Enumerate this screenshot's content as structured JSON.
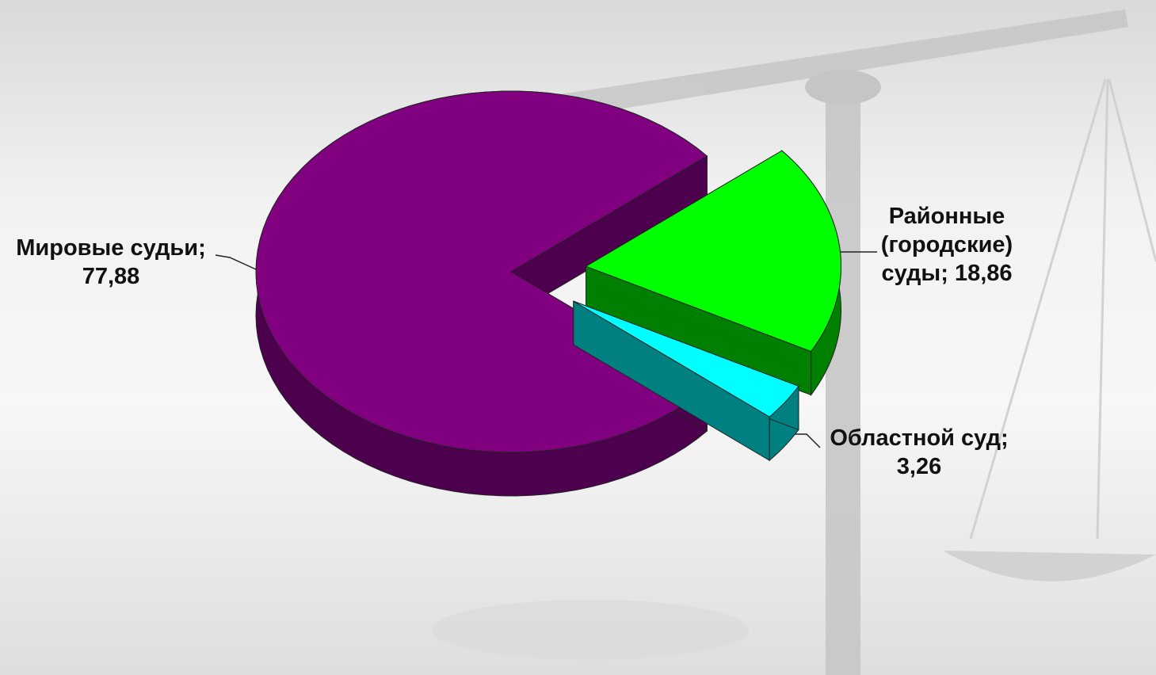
{
  "chart_data": {
    "type": "pie",
    "categories": [
      "Мировые судьи",
      "Районные (городские) суды",
      "Областной суд"
    ],
    "values": [
      77.88,
      18.86,
      3.26
    ],
    "value_labels": [
      "77,88",
      "18,86",
      "3,26"
    ],
    "label_separator": ";",
    "colors": [
      "#800080",
      "#00ff00",
      "#00ffff"
    ],
    "side_colors": [
      "#4d004d",
      "#008000",
      "#008080"
    ],
    "exploded": [
      false,
      true,
      true
    ]
  }
}
